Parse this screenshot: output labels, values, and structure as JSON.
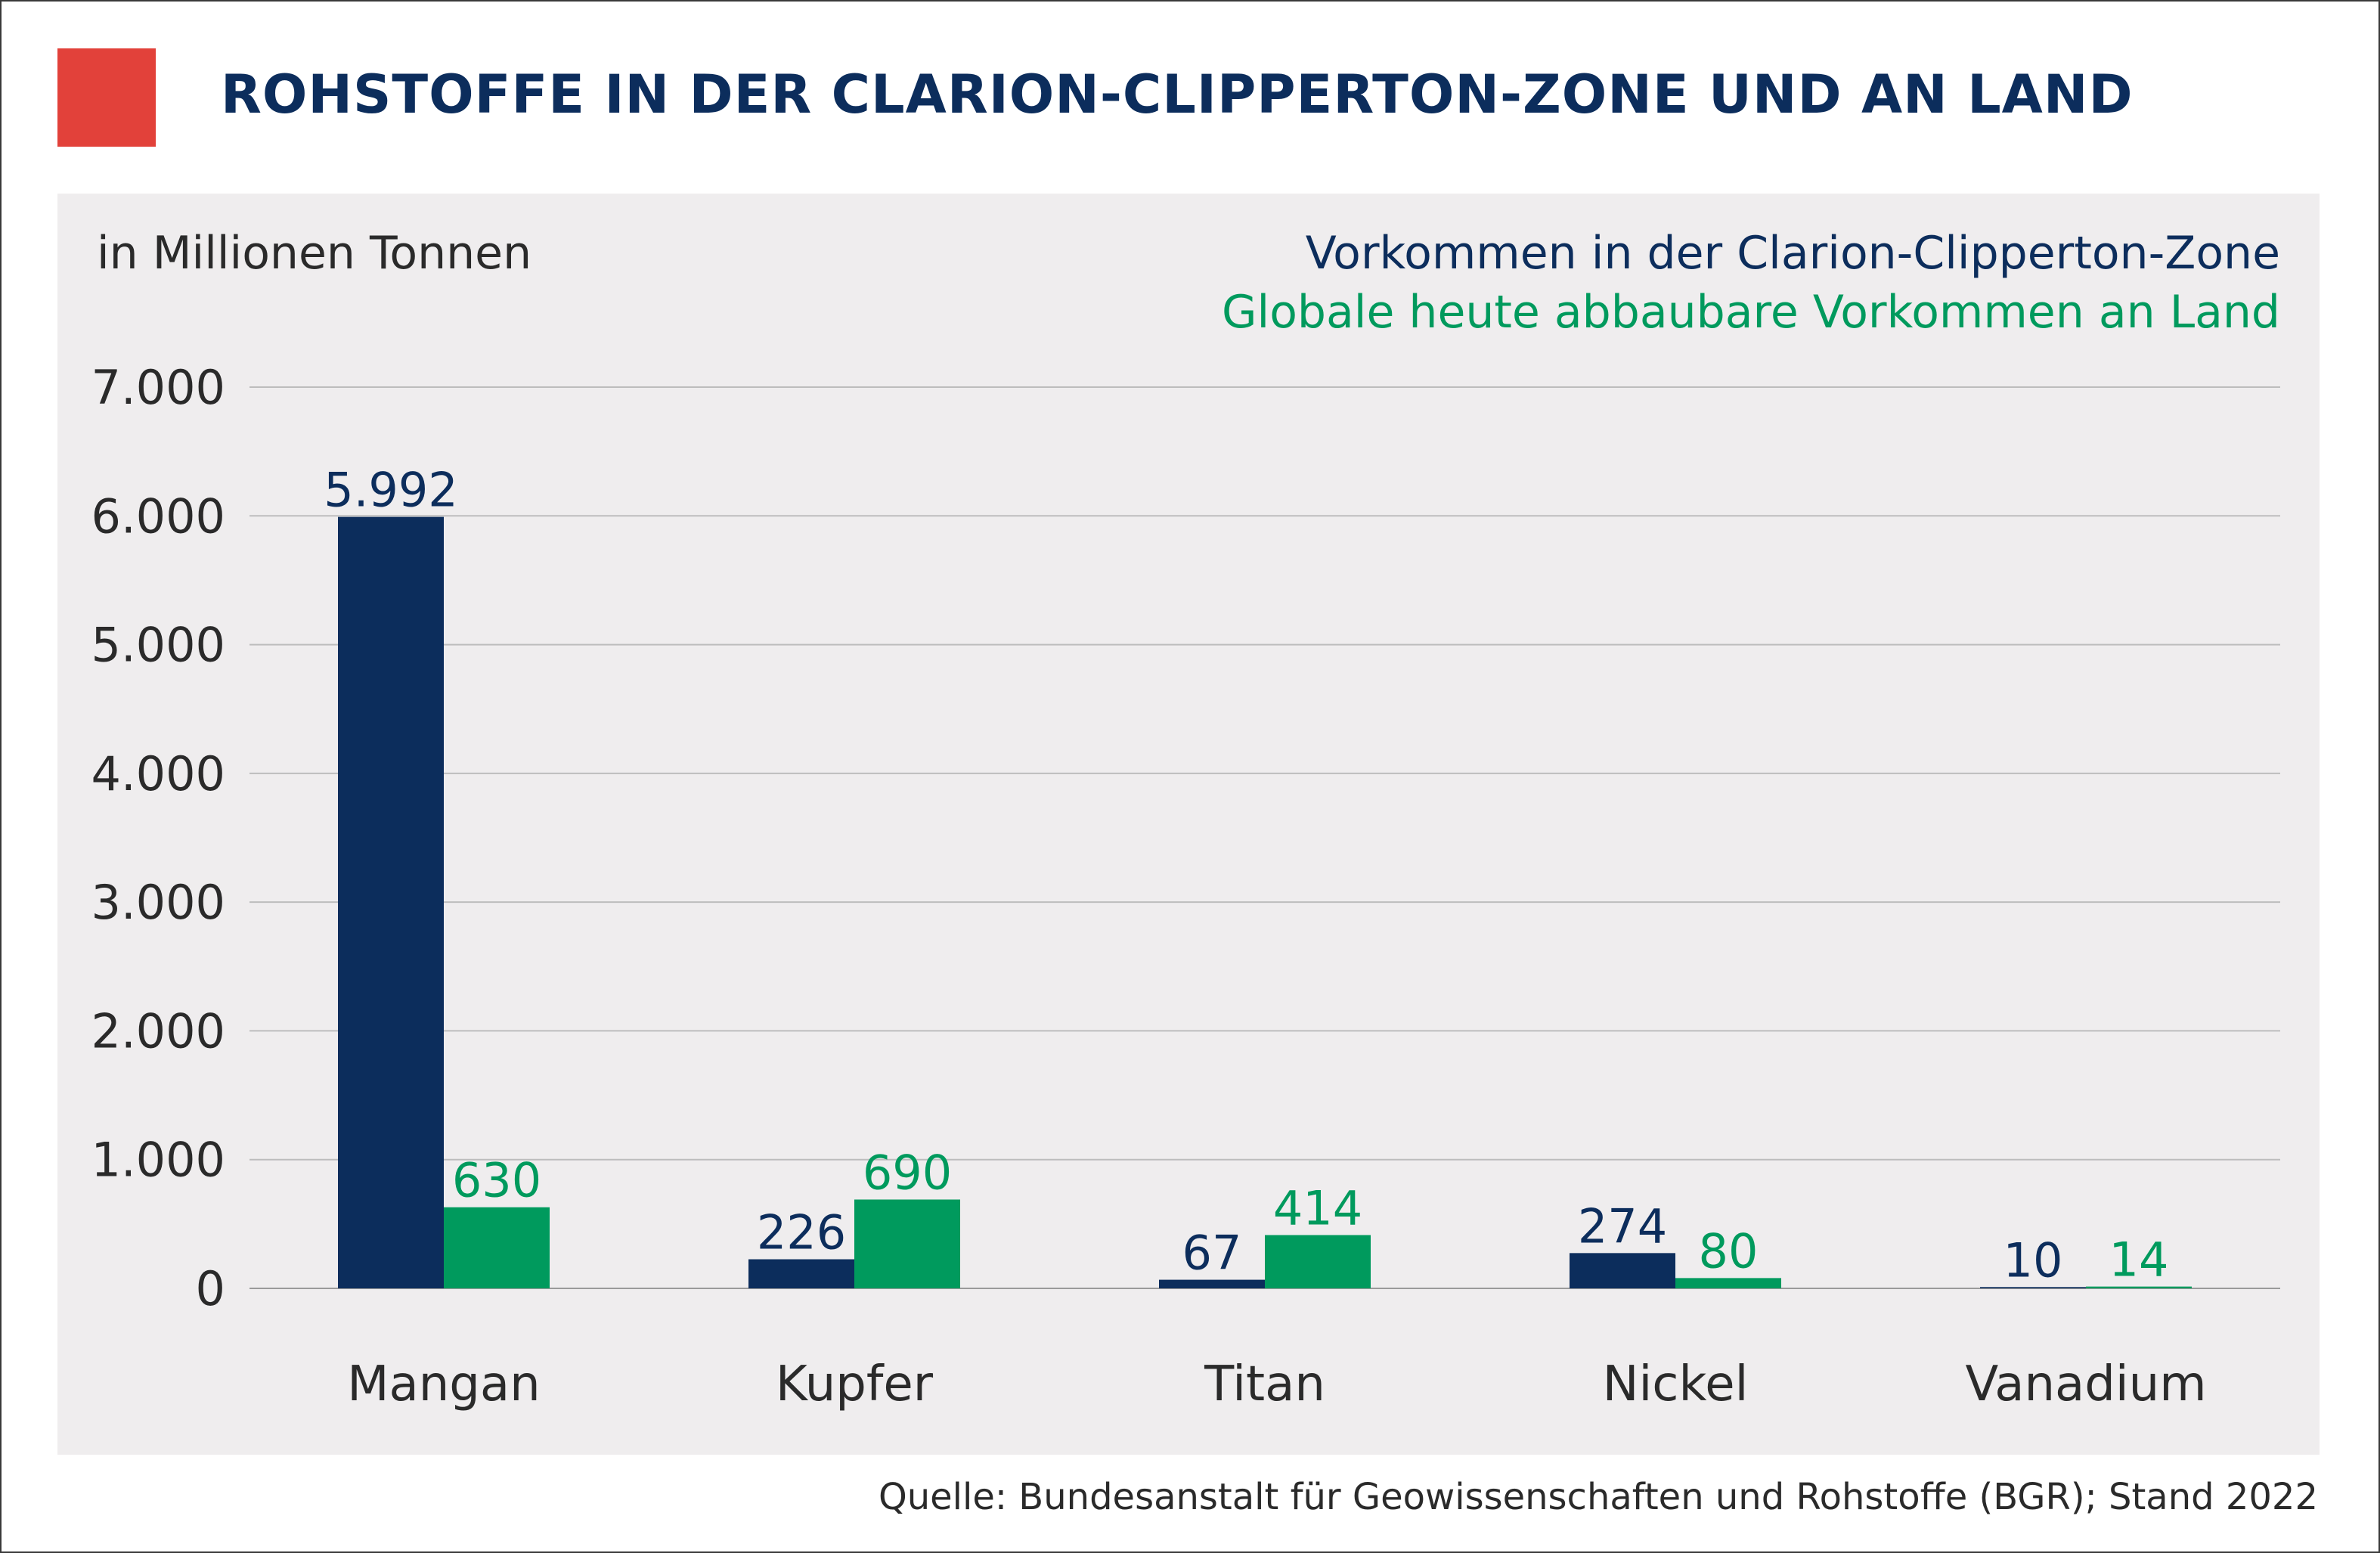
{
  "title": "ROHSTOFFE IN DER CLARION-CLIPPERTON-ZONE UND AN LAND",
  "source": "Quelle: Bundesanstalt für Geowissenschaften und Rohstoffe (BGR); Stand 2022",
  "colors": {
    "accent": "#e2413a",
    "series1": "#0c2d5c",
    "series2": "#009a5d",
    "grid": "#bdbdbd",
    "panel": "#efedee"
  },
  "chart_data": {
    "type": "bar",
    "title": "ROHSTOFFE IN DER CLARION-CLIPPERTON-ZONE UND AN LAND",
    "ylabel": "in Millionen Tonnen",
    "xlabel": "",
    "ylim": [
      0,
      7000
    ],
    "yticks": [
      0,
      1000,
      2000,
      3000,
      4000,
      5000,
      6000,
      7000
    ],
    "ytick_labels": [
      "0",
      "1.000",
      "2.000",
      "3.000",
      "4.000",
      "5.000",
      "6.000",
      "7.000"
    ],
    "grid": true,
    "legend_position": "top-right",
    "categories": [
      "Mangan",
      "Kupfer",
      "Titan",
      "Nickel",
      "Vanadium"
    ],
    "series": [
      {
        "name": "Vorkommen in der Clarion-Clipperton-Zone",
        "color": "#0c2d5c",
        "values": [
          5992,
          226,
          67,
          274,
          10
        ],
        "labels": [
          "5.992",
          "226",
          "67",
          "274",
          "10"
        ]
      },
      {
        "name": "Globale heute abbaubare Vorkommen an Land",
        "color": "#009a5d",
        "values": [
          630,
          690,
          414,
          80,
          14
        ],
        "labels": [
          "630",
          "690",
          "414",
          "80",
          "14"
        ]
      }
    ]
  }
}
